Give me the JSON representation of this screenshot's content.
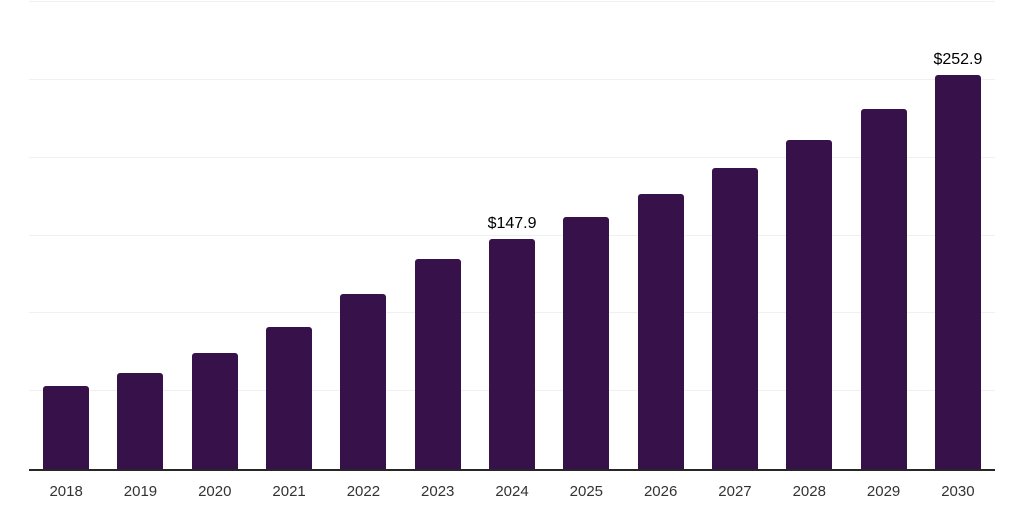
{
  "chart_data": {
    "type": "bar",
    "title": "",
    "xlabel": "",
    "ylabel": "",
    "categories": [
      "2018",
      "2019",
      "2020",
      "2021",
      "2022",
      "2023",
      "2024",
      "2025",
      "2026",
      "2027",
      "2028",
      "2029",
      "2030"
    ],
    "values": [
      53.2,
      61.6,
      74.8,
      91.0,
      112.3,
      135.0,
      147.9,
      161.7,
      176.8,
      193.4,
      211.4,
      231.2,
      252.9
    ],
    "data_labels": {
      "2024": "$147.9",
      "2030": "$252.9"
    },
    "ylim": [
      0,
      300
    ],
    "gridline_step": 50,
    "grid": true,
    "legend": false,
    "y_tick_labels_visible": false,
    "colors": {
      "bar": "#36114a",
      "value_label": "#000000",
      "tick_label": "#333333",
      "axis_line": "#262626",
      "gridline": "#f0f0f2",
      "background": "#ffffff"
    }
  }
}
